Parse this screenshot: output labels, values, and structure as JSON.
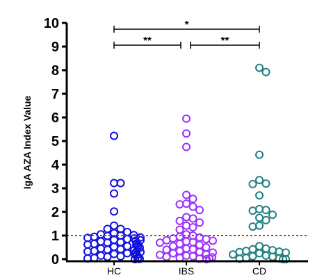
{
  "chart_data": {
    "type": "scatter",
    "ylabel": "IgA AZA Index Value",
    "ylim": [
      0,
      10
    ],
    "yticks": [
      "0",
      "1",
      "2",
      "3",
      "4",
      "5",
      "6",
      "7",
      "8",
      "9",
      "10"
    ],
    "categories": [
      "HC",
      "IBS",
      "CD"
    ],
    "threshold": {
      "value": 1,
      "color": "#e02020",
      "style": "dotted"
    },
    "grid": false,
    "series": [
      {
        "category": "HC",
        "color": "#1010e0",
        "values": [
          5.22,
          3.22,
          3.22,
          2.78,
          2.02,
          1.42,
          1.28,
          1.28,
          1.15,
          1.1,
          1.05,
          1.02,
          1.0,
          0.98,
          0.95,
          0.92,
          0.9,
          0.88,
          0.85,
          0.82,
          0.8,
          0.78,
          0.75,
          0.72,
          0.7,
          0.68,
          0.65,
          0.62,
          0.6,
          0.58,
          0.55,
          0.52,
          0.5,
          0.48,
          0.45,
          0.42,
          0.4,
          0.38,
          0.35,
          0.32,
          0.3,
          0.28,
          0.25,
          0.22,
          0.2,
          0.18,
          0.15,
          0.12,
          0.1,
          0.08,
          0.05,
          0.03,
          0.02,
          0.01,
          0.0
        ]
      },
      {
        "category": "IBS",
        "color": "#9b30ff",
        "values": [
          5.95,
          5.32,
          4.75,
          2.72,
          2.55,
          2.35,
          2.32,
          2.22,
          2.08,
          1.78,
          1.72,
          1.62,
          1.55,
          1.42,
          1.35,
          1.25,
          1.05,
          1.0,
          0.95,
          0.92,
          0.88,
          0.85,
          0.8,
          0.78,
          0.75,
          0.72,
          0.7,
          0.65,
          0.6,
          0.55,
          0.5,
          0.45,
          0.42,
          0.4,
          0.35,
          0.3,
          0.28,
          0.25,
          0.2,
          0.18,
          0.15,
          0.12,
          0.1,
          0.08,
          0.05,
          0.03,
          0.02,
          0.0
        ]
      },
      {
        "category": "CD",
        "color": "#208080",
        "values": [
          8.1,
          7.92,
          4.42,
          3.35,
          3.2,
          3.18,
          2.7,
          2.12,
          2.08,
          2.05,
          1.88,
          1.75,
          1.65,
          1.42,
          1.38,
          0.55,
          0.45,
          0.42,
          0.38,
          0.35,
          0.32,
          0.3,
          0.28,
          0.25,
          0.2,
          0.15,
          0.12,
          0.1,
          0.05,
          0.03,
          0.02,
          0.0,
          0.0
        ]
      }
    ],
    "comparisons": [
      {
        "from": "HC",
        "to": "IBS",
        "label": "**"
      },
      {
        "from": "IBS",
        "to": "CD",
        "label": "**"
      },
      {
        "from": "HC",
        "to": "CD",
        "label": "*"
      }
    ]
  }
}
